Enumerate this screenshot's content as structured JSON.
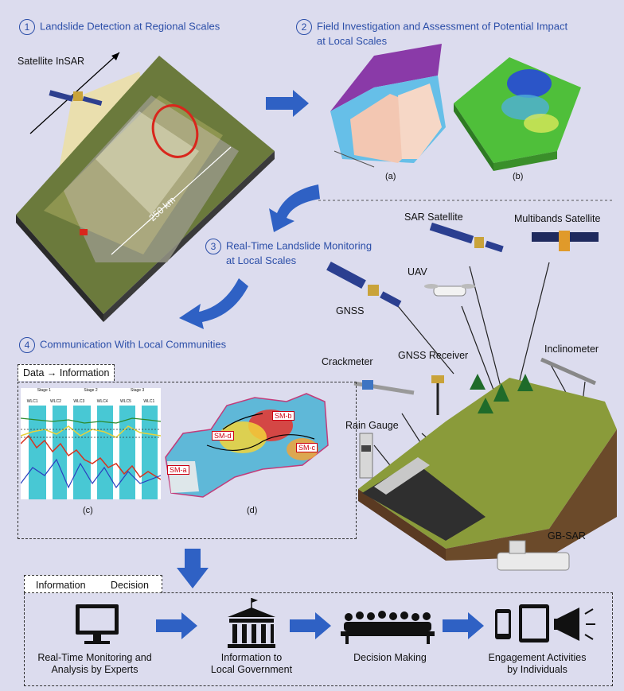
{
  "colors": {
    "step_blue": "#2b4ea8",
    "arrow_blue": "#2f61c4",
    "bg": "#dcdcee"
  },
  "steps": {
    "s1": {
      "num": "1",
      "title": "Landslide Detection at Regional Scales"
    },
    "s2": {
      "num": "2",
      "title_l1": "Field Investigation and Assessment of Potential Impact",
      "title_l2": "at Local Scales"
    },
    "s3": {
      "num": "3",
      "title_l1": "Real-Time Landslide Monitoring",
      "title_l2": "at Local Scales"
    },
    "s4": {
      "num": "4",
      "title": "Communication With Local Communities"
    }
  },
  "panel1": {
    "satellite_label": "Satellite InSAR",
    "scale_label": "~250 km"
  },
  "panel2": {
    "cap_a": "(a)",
    "cap_b": "(b)"
  },
  "panel3": {
    "sar_satellite": "SAR Satellite",
    "multibands_satellite": "Multibands Satellite",
    "uav": "UAV",
    "gnss": "GNSS",
    "gnss_receiver": "GNSS Receiver",
    "crackmeter": "Crackmeter",
    "inclinometer": "Inclinometer",
    "rain_gauge": "Rain Gauge",
    "gb_sar": "GB-SAR"
  },
  "panel4": {
    "tab_data": "Data",
    "tab_arrow": "→",
    "tab_information": "Information",
    "cap_c": "(c)",
    "cap_d": "(d)",
    "stages": [
      "Stage 1",
      "Stage 2",
      "Stage 3"
    ],
    "wlc": [
      "WLC1",
      "WLC2",
      "WLC3",
      "WLC4",
      "WLC5",
      "WLC1"
    ],
    "sm_labels": {
      "a": "SM-a",
      "b": "SM-b",
      "c": "SM-c",
      "d": "SM-d"
    }
  },
  "bottom": {
    "tab_information": "Information",
    "tab_decision": "Decision",
    "items": [
      {
        "l1": "Real-Time Monitoring and",
        "l2": "Analysis by Experts",
        "icon": "monitor-icon"
      },
      {
        "l1": "Information to",
        "l2": "Local Government",
        "icon": "government-building-icon"
      },
      {
        "l1": "Decision Making",
        "l2": "",
        "icon": "meeting-people-icon"
      },
      {
        "l1": "Engagement Activities",
        "l2": "by Individuals",
        "icon": "phone-tablet-megaphone-icon"
      }
    ]
  }
}
